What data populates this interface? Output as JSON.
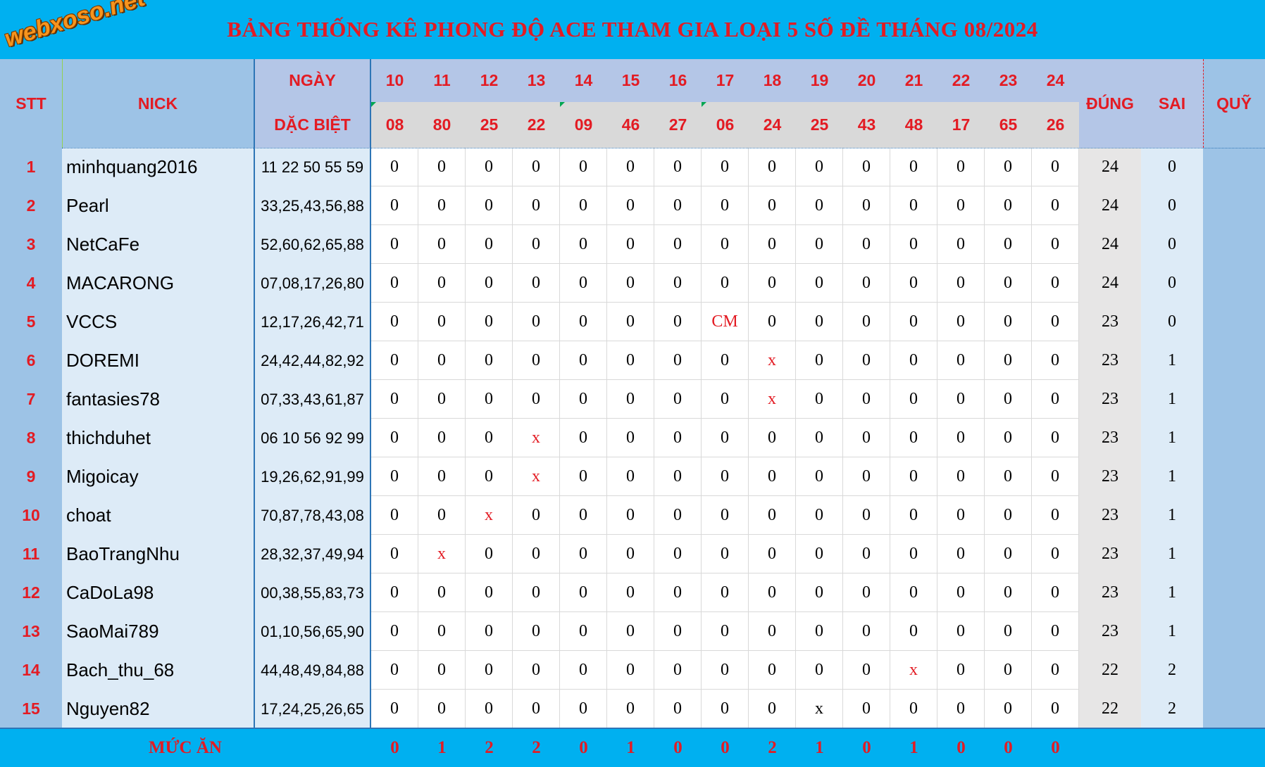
{
  "title": "BẢNG THỐNG KÊ PHONG ĐỘ ACE THAM GIA LOẠI 5 SỐ ĐỀ THÁNG 08/2024",
  "logo": "webxoso.net",
  "headers": {
    "stt": "STT",
    "nick": "NICK",
    "ngay": "NGÀY",
    "dac_biet": "DẶC BIỆT",
    "dung": "ĐÚNG",
    "sai": "SAI",
    "quy": "QUỸ"
  },
  "days": [
    "10",
    "11",
    "12",
    "13",
    "14",
    "15",
    "16",
    "17",
    "18",
    "19",
    "20",
    "21",
    "22",
    "23",
    "24"
  ],
  "results": [
    "08",
    "80",
    "25",
    "22",
    "09",
    "46",
    "27",
    "06",
    "24",
    "25",
    "43",
    "48",
    "17",
    "65",
    "26"
  ],
  "rows": [
    {
      "stt": "1",
      "nick": "minhquang2016",
      "numbers": "11 22 50 55 59",
      "marks": [
        "0",
        "0",
        "0",
        "0",
        "0",
        "0",
        "0",
        "0",
        "0",
        "0",
        "0",
        "0",
        "0",
        "0",
        "0"
      ],
      "dung": "24",
      "sai": "0"
    },
    {
      "stt": "2",
      "nick": "Pearl",
      "numbers": "33,25,43,56,88",
      "marks": [
        "0",
        "0",
        "0",
        "0",
        "0",
        "0",
        "0",
        "0",
        "0",
        "0",
        "0",
        "0",
        "0",
        "0",
        "0"
      ],
      "dung": "24",
      "sai": "0"
    },
    {
      "stt": "3",
      "nick": "NetCaFe",
      "numbers": "52,60,62,65,88",
      "marks": [
        "0",
        "0",
        "0",
        "0",
        "0",
        "0",
        "0",
        "0",
        "0",
        "0",
        "0",
        "0",
        "0",
        "0",
        "0"
      ],
      "dung": "24",
      "sai": "0"
    },
    {
      "stt": "4",
      "nick": "MACARONG",
      "numbers": "07,08,17,26,80",
      "marks": [
        "0",
        "0",
        "0",
        "0",
        "0",
        "0",
        "0",
        "0",
        "0",
        "0",
        "0",
        "0",
        "0",
        "0",
        "0"
      ],
      "dung": "24",
      "sai": "0"
    },
    {
      "stt": "5",
      "nick": "VCCS",
      "numbers": "12,17,26,42,71",
      "marks": [
        "0",
        "0",
        "0",
        "0",
        "0",
        "0",
        "0",
        "CM",
        "0",
        "0",
        "0",
        "0",
        "0",
        "0",
        "0"
      ],
      "dung": "23",
      "sai": "0"
    },
    {
      "stt": "6",
      "nick": "DOREMI",
      "numbers": "24,42,44,82,92",
      "marks": [
        "0",
        "0",
        "0",
        "0",
        "0",
        "0",
        "0",
        "0",
        "x",
        "0",
        "0",
        "0",
        "0",
        "0",
        "0"
      ],
      "dung": "23",
      "sai": "1"
    },
    {
      "stt": "7",
      "nick": "fantasies78",
      "numbers": "07,33,43,61,87",
      "marks": [
        "0",
        "0",
        "0",
        "0",
        "0",
        "0",
        "0",
        "0",
        "x",
        "0",
        "0",
        "0",
        "0",
        "0",
        "0"
      ],
      "dung": "23",
      "sai": "1"
    },
    {
      "stt": "8",
      "nick": "thichduhet",
      "numbers": "06 10 56 92 99",
      "marks": [
        "0",
        "0",
        "0",
        "x",
        "0",
        "0",
        "0",
        "0",
        "0",
        "0",
        "0",
        "0",
        "0",
        "0",
        "0"
      ],
      "dung": "23",
      "sai": "1"
    },
    {
      "stt": "9",
      "nick": "Migoicay",
      "numbers": "19,26,62,91,99",
      "marks": [
        "0",
        "0",
        "0",
        "x",
        "0",
        "0",
        "0",
        "0",
        "0",
        "0",
        "0",
        "0",
        "0",
        "0",
        "0"
      ],
      "dung": "23",
      "sai": "1"
    },
    {
      "stt": "10",
      "nick": "choat",
      "numbers": "70,87,78,43,08",
      "marks": [
        "0",
        "0",
        "x",
        "0",
        "0",
        "0",
        "0",
        "0",
        "0",
        "0",
        "0",
        "0",
        "0",
        "0",
        "0"
      ],
      "dung": "23",
      "sai": "1"
    },
    {
      "stt": "11",
      "nick": "BaoTrangNhu",
      "numbers": "28,32,37,49,94",
      "marks": [
        "0",
        "x",
        "0",
        "0",
        "0",
        "0",
        "0",
        "0",
        "0",
        "0",
        "0",
        "0",
        "0",
        "0",
        "0"
      ],
      "dung": "23",
      "sai": "1"
    },
    {
      "stt": "12",
      "nick": "CaDoLa98",
      "numbers": "00,38,55,83,73",
      "marks": [
        "0",
        "0",
        "0",
        "0",
        "0",
        "0",
        "0",
        "0",
        "0",
        "0",
        "0",
        "0",
        "0",
        "0",
        "0"
      ],
      "dung": "23",
      "sai": "1"
    },
    {
      "stt": "13",
      "nick": "SaoMai789",
      "numbers": "01,10,56,65,90",
      "marks": [
        "0",
        "0",
        "0",
        "0",
        "0",
        "0",
        "0",
        "0",
        "0",
        "0",
        "0",
        "0",
        "0",
        "0",
        "0"
      ],
      "dung": "23",
      "sai": "1"
    },
    {
      "stt": "14",
      "nick": "Bach_thu_68",
      "numbers": "44,48,49,84,88",
      "marks": [
        "0",
        "0",
        "0",
        "0",
        "0",
        "0",
        "0",
        "0",
        "0",
        "0",
        "0",
        "x",
        "0",
        "0",
        "0"
      ],
      "dung": "22",
      "sai": "2"
    },
    {
      "stt": "15",
      "nick": "Nguyen82",
      "numbers": "17,24,25,26,65",
      "marks": [
        "0",
        "0",
        "0",
        "0",
        "0",
        "0",
        "0",
        "0",
        "0",
        "x",
        "0",
        "0",
        "0",
        "0",
        "0"
      ],
      "dung": "22",
      "sai": "2"
    }
  ],
  "footer": {
    "label": "MỨC ĂN",
    "values": [
      "0",
      "1",
      "2",
      "2",
      "0",
      "1",
      "0",
      "0",
      "2",
      "1",
      "0",
      "1",
      "0",
      "0",
      "0"
    ]
  },
  "colors": {
    "title_bar": "#00b0f0",
    "accent_red": "#e31b23",
    "header_blue": "#b4c6e7",
    "stt_column": "#9dc3e6",
    "nick_column": "#ddebf7",
    "result_row": "#d9d9d9",
    "border_blue": "#2e75b6"
  }
}
